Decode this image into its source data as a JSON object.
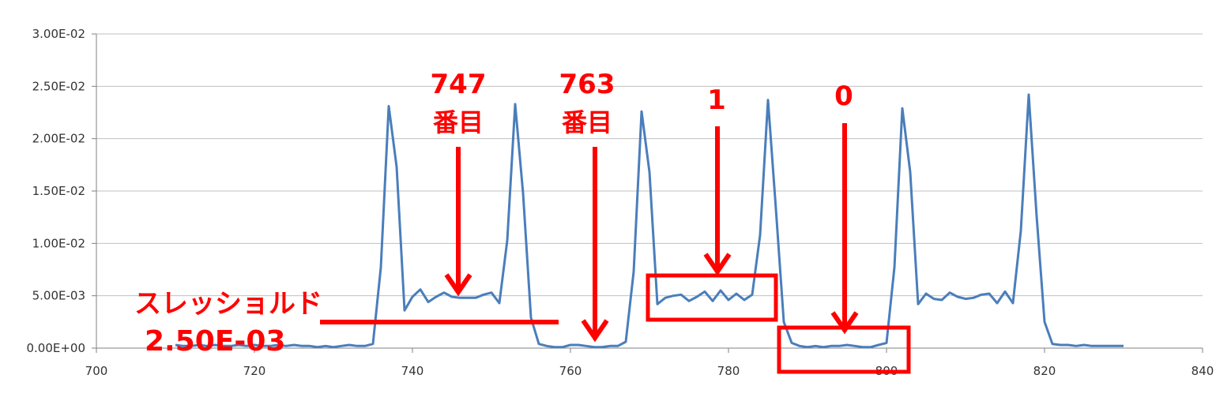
{
  "colors": {
    "series": "#4a7ebb",
    "annotation": "#ff0000",
    "grid": "#c0c0c0",
    "axis": "#808080"
  },
  "chart_data": {
    "type": "line",
    "title": "",
    "xlabel": "",
    "ylabel": "",
    "xlim": [
      700,
      840
    ],
    "ylim": [
      0,
      0.03
    ],
    "grid": true,
    "legend": "none",
    "x_ticks": [
      "700",
      "720",
      "740",
      "760",
      "780",
      "800",
      "820",
      "840"
    ],
    "y_ticks": [
      "0.00E+00",
      "5.00E-03",
      "1.00E-02",
      "1.50E-02",
      "2.00E-02",
      "2.50E-02",
      "3.00E-02"
    ],
    "series": [
      {
        "x": [
          710,
          711,
          712,
          713,
          714,
          715,
          716,
          717,
          718,
          719,
          720,
          721,
          722,
          723,
          724,
          725,
          726,
          727,
          728,
          729,
          730,
          731,
          732,
          733,
          734,
          735,
          736,
          737,
          738,
          739,
          740,
          741,
          742,
          743,
          744,
          745,
          746,
          747,
          748,
          749,
          750,
          751,
          752,
          753,
          754,
          755,
          756,
          757,
          758,
          759,
          760,
          761,
          762,
          763,
          764,
          765,
          766,
          767,
          768,
          769,
          770,
          771,
          772,
          773,
          774,
          775,
          776,
          777,
          778,
          779,
          780,
          781,
          782,
          783,
          784,
          785,
          786,
          787,
          788,
          789,
          790,
          791,
          792,
          793,
          794,
          795,
          796,
          797,
          798,
          799,
          800,
          801,
          802,
          803,
          804,
          805,
          806,
          807,
          808,
          809,
          810,
          811,
          812,
          813,
          814,
          815,
          816,
          817,
          818,
          819,
          820,
          821,
          822,
          823,
          824,
          825,
          826,
          827,
          828,
          829,
          830
        ],
        "y": [
          0.0003,
          0.0002,
          0.0002,
          0.0003,
          0.0002,
          0.0003,
          0.0002,
          0.0002,
          0.0003,
          0.0002,
          0.0003,
          0.0002,
          0.0002,
          0.0003,
          0.0002,
          0.0003,
          0.0002,
          0.0002,
          0.0001,
          0.0002,
          0.0001,
          0.0002,
          0.0003,
          0.0002,
          0.0002,
          0.0004,
          0.0077,
          0.0231,
          0.0173,
          0.0036,
          0.0049,
          0.0056,
          0.0044,
          0.0049,
          0.0053,
          0.0049,
          0.0048,
          0.0048,
          0.0048,
          0.0051,
          0.0053,
          0.0043,
          0.0103,
          0.0233,
          0.0148,
          0.0029,
          0.0004,
          0.0002,
          0.0001,
          0.0001,
          0.0003,
          0.0003,
          0.0002,
          0.0001,
          0.0001,
          0.0002,
          0.0002,
          0.0006,
          0.0073,
          0.0226,
          0.0168,
          0.0042,
          0.0048,
          0.005,
          0.0051,
          0.0045,
          0.0049,
          0.0054,
          0.0045,
          0.0055,
          0.0046,
          0.0052,
          0.0046,
          0.0051,
          0.0108,
          0.0237,
          0.0133,
          0.0025,
          0.0005,
          0.0002,
          0.0001,
          0.0002,
          0.0001,
          0.0002,
          0.0002,
          0.0003,
          0.0002,
          0.0001,
          0.0001,
          0.0003,
          0.0005,
          0.0077,
          0.0229,
          0.0168,
          0.0042,
          0.0052,
          0.0047,
          0.0046,
          0.0053,
          0.0049,
          0.0047,
          0.0048,
          0.0051,
          0.0052,
          0.0043,
          0.0054,
          0.0043,
          0.0112,
          0.0242,
          0.0126,
          0.0025,
          0.0004,
          0.0003,
          0.0003,
          0.0002,
          0.0003,
          0.0002,
          0.0002,
          0.0002,
          0.0002,
          0.0002
        ]
      }
    ],
    "annotations": {
      "label_747_num": "747",
      "label_747_unit": "番目",
      "label_763_num": "763",
      "label_763_unit": "番目",
      "label_one": "1",
      "label_zero": "0",
      "threshold_label": "スレッショルド",
      "threshold_value": "2.50E-03"
    }
  }
}
